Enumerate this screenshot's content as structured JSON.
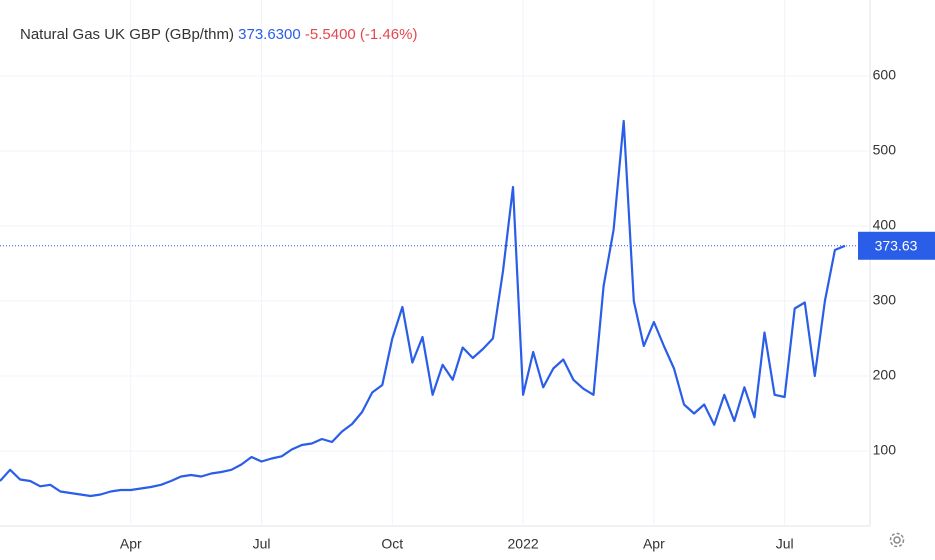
{
  "header": {
    "name": "Natural Gas UK GBP (GBp/thm)",
    "price": "373.6300",
    "change": "-5.5400 (-1.46%)"
  },
  "chart_data": {
    "type": "line",
    "categories": [
      null,
      null,
      null,
      null,
      null,
      null,
      null,
      null,
      null,
      null,
      null,
      null,
      null,
      "Apr",
      null,
      null,
      null,
      null,
      null,
      null,
      null,
      null,
      null,
      null,
      null,
      null,
      "Jul",
      null,
      null,
      null,
      null,
      null,
      null,
      null,
      null,
      null,
      null,
      null,
      null,
      "Oct",
      null,
      null,
      null,
      null,
      null,
      null,
      null,
      null,
      null,
      null,
      null,
      null,
      "2022",
      null,
      null,
      null,
      null,
      null,
      null,
      null,
      null,
      null,
      null,
      null,
      null,
      "Apr",
      null,
      null,
      null,
      null,
      null,
      null,
      null,
      null,
      null,
      null,
      null,
      null,
      "Jul",
      null,
      null,
      null,
      null,
      null,
      null
    ],
    "series": [
      {
        "name": "Natural Gas UK GBP",
        "color": "#2a5ee8",
        "values": [
          60,
          75,
          62,
          60,
          53,
          55,
          46,
          44,
          42,
          40,
          42,
          46,
          48,
          48,
          50,
          52,
          55,
          60,
          66,
          68,
          66,
          70,
          72,
          75,
          82,
          92,
          86,
          90,
          93,
          102,
          108,
          110,
          116,
          112,
          126,
          136,
          152,
          178,
          188,
          250,
          292,
          218,
          252,
          175,
          215,
          195,
          238,
          224,
          236,
          250,
          340,
          452,
          175,
          232,
          185,
          210,
          222,
          195,
          183,
          175,
          320,
          395,
          540,
          300,
          240,
          272,
          240,
          210,
          162,
          150,
          162,
          135,
          175,
          140,
          185,
          145,
          258,
          175,
          172,
          290,
          298,
          200,
          300,
          368,
          373.63
        ]
      }
    ],
    "price_line": 373.63,
    "ylim": [
      0,
      700
    ],
    "yticks": [
      100,
      200,
      300,
      400,
      500,
      600
    ],
    "grid": true
  }
}
